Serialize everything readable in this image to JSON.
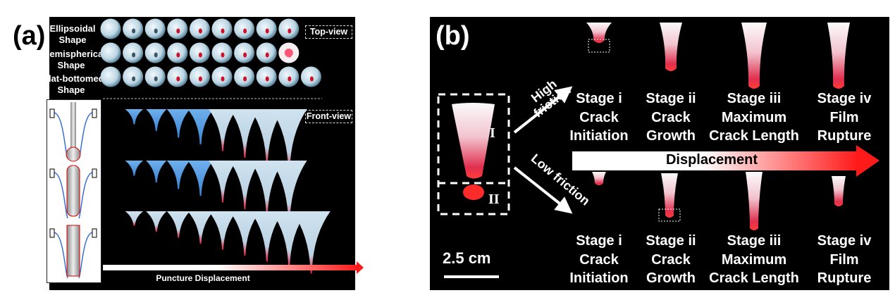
{
  "panel_a": {
    "label": "(a)",
    "rows": [
      {
        "line1": "Ellipsoidal",
        "line2": "Shape"
      },
      {
        "line1": "Hemispherical",
        "line2": "Shape"
      },
      {
        "line1": "Flat-bottomed",
        "line2": "Shape"
      }
    ],
    "top_view_label": "Top-view",
    "front_view_label": "Front-view",
    "arrow_label": "Puncture Displacement"
  },
  "panel_b": {
    "label": "(b)",
    "region_labels": [
      "I",
      "II"
    ],
    "high_friction": "High friction",
    "low_friction": "Low friction",
    "arrow_label": "Displacement",
    "scale_bar": "2.5 cm",
    "stages_top": [
      {
        "stage": "Stage  i",
        "l2": "Crack",
        "l3": "Initiation"
      },
      {
        "stage": "Stage  ii",
        "l2": "Crack",
        "l3": "Growth"
      },
      {
        "stage": "Stage  iii",
        "l2": "Maximum",
        "l3": "Crack Length"
      },
      {
        "stage": "Stage  iv",
        "l2": "Film",
        "l3": "Rupture"
      }
    ],
    "stages_bottom": [
      {
        "stage": "Stage  i",
        "l2": "Crack",
        "l3": "Initiation"
      },
      {
        "stage": "Stage  ii",
        "l2": "Crack",
        "l3": "Growth"
      },
      {
        "stage": "Stage  iii",
        "l2": "Maximum",
        "l3": "Crack Length"
      },
      {
        "stage": "Stage  iv",
        "l2": "Film",
        "l3": "Rupture"
      }
    ]
  },
  "colors": {
    "background": "#000000",
    "film": "#cfe3f0",
    "stain": "#e8203a",
    "arrow_end": "#ff1a1a"
  }
}
